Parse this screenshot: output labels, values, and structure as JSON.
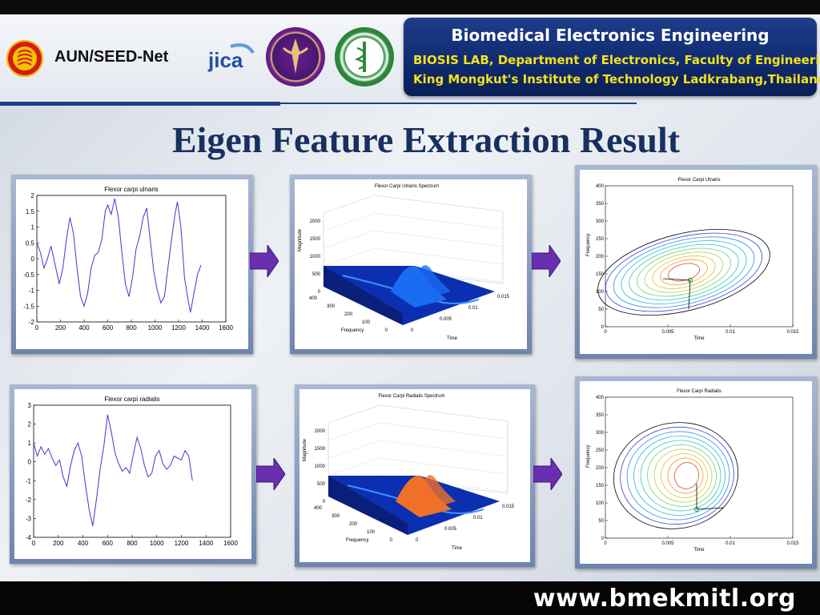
{
  "header": {
    "org_name": "AUN/SEED-Net",
    "jica_logo_text": "jica",
    "info_title": "Biomedical Electronics Engineering",
    "info_line1": "BIOSIS LAB, Department of Electronics, Faculty of Engineering",
    "info_line2": "King Mongkut's Institute of Technology Ladkrabang,Thailand"
  },
  "title": "Eigen Feature Extraction Result",
  "footer_url": "www.bmekmitl.org",
  "colors": {
    "title": "#17305f",
    "banner": "#0f2a6e",
    "banner_text": "#f4e21c",
    "arrow": "#6a2fb0",
    "signal": "#3b3bd0"
  },
  "charts": {
    "ulnaris_time": {
      "title": "Flexor carpi ulnaris",
      "x_ticks": [
        "0",
        "200",
        "400",
        "600",
        "800",
        "1000",
        "1200",
        "1400",
        "1600"
      ],
      "y_ticks": [
        "2",
        "1.5",
        "1",
        "0.5",
        "0",
        "-0.5",
        "-1",
        "-1.5",
        "-2"
      ]
    },
    "ulnaris_spectrum": {
      "title": "Flexor Carpi Ulnaris Spectrum",
      "z_ticks": [
        "2000",
        "1500",
        "1000",
        "500",
        "0"
      ],
      "z_label": "Magnitude",
      "freq_ticks": [
        "400",
        "300",
        "200",
        "100",
        "0"
      ],
      "freq_label": "Frequency",
      "time_ticks": [
        "0",
        "0.005",
        "0.01",
        "0.015"
      ],
      "time_label": "Time"
    },
    "ulnaris_contour": {
      "title": "Flexor Carpi Ulnaris",
      "y_ticks": [
        "400",
        "350",
        "300",
        "250",
        "200",
        "150",
        "100",
        "50",
        "0"
      ],
      "x_ticks": [
        "0",
        "0.005",
        "0.01",
        "0.015"
      ],
      "ylabel": "Frequency",
      "xlabel": "Time"
    },
    "radialis_time": {
      "title": "Flexor carpi radialis",
      "x_ticks": [
        "0",
        "200",
        "400",
        "600",
        "800",
        "1000",
        "1200",
        "1400",
        "1600"
      ],
      "y_ticks": [
        "3",
        "2",
        "1",
        "0",
        "-1",
        "-2",
        "-3",
        "-4"
      ]
    },
    "radialis_spectrum": {
      "title": "Flexor Carpi Radialis Spectrum",
      "z_ticks": [
        "2000",
        "1500",
        "1000",
        "500",
        "0"
      ],
      "z_label": "Magnitude",
      "freq_ticks": [
        "400",
        "300",
        "200",
        "100",
        "0"
      ],
      "freq_label": "Frequency",
      "time_ticks": [
        "0",
        "0.005",
        "0.01",
        "0.015"
      ],
      "time_label": "Time"
    },
    "radialis_contour": {
      "title": "Flexor Carpi Radialis",
      "y_ticks": [
        "400",
        "350",
        "300",
        "250",
        "200",
        "150",
        "100",
        "50",
        "0"
      ],
      "x_ticks": [
        "0",
        "0.005",
        "0.01",
        "0.015"
      ],
      "ylabel": "Frequency",
      "xlabel": "Time"
    }
  }
}
